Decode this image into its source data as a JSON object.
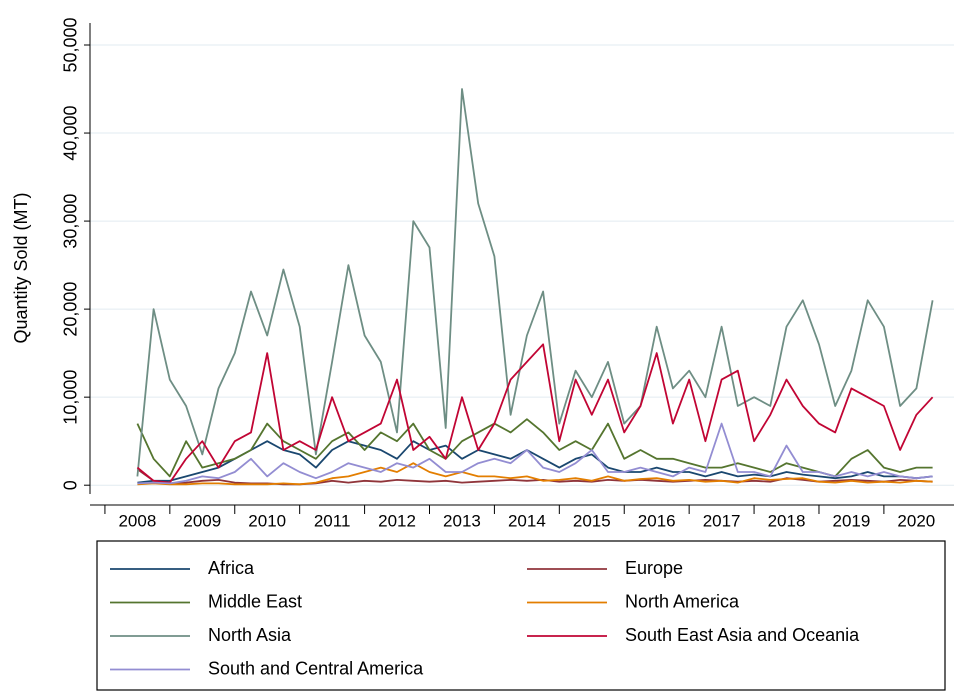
{
  "chart_data": {
    "type": "line",
    "y_label": "Quantity Sold (MT)",
    "x": [
      2008.5,
      2008.75,
      2009.0,
      2009.25,
      2009.5,
      2009.75,
      2010.0,
      2010.25,
      2010.5,
      2010.75,
      2011.0,
      2011.25,
      2011.5,
      2011.75,
      2012.0,
      2012.25,
      2012.5,
      2012.75,
      2013.0,
      2013.25,
      2013.5,
      2013.75,
      2014.0,
      2014.25,
      2014.5,
      2014.75,
      2015.0,
      2015.25,
      2015.5,
      2015.75,
      2016.0,
      2016.25,
      2016.5,
      2016.75,
      2017.0,
      2017.25,
      2017.5,
      2017.75,
      2018.0,
      2018.25,
      2018.5,
      2018.75,
      2019.0,
      2019.25,
      2019.5,
      2019.75,
      2020.0,
      2020.25,
      2020.5,
      2020.75
    ],
    "xlim": [
      2007.77,
      2021.08
    ],
    "xticks": [
      2008,
      2009,
      2010,
      2011,
      2012,
      2013,
      2014,
      2015,
      2016,
      2017,
      2018,
      2019,
      2020
    ],
    "xticklabels": [
      {
        "value": 2008.5,
        "label": "2008"
      },
      {
        "value": 2009.5,
        "label": "2009"
      },
      {
        "value": 2010.5,
        "label": "2010"
      },
      {
        "value": 2011.5,
        "label": "2011"
      },
      {
        "value": 2012.5,
        "label": "2012"
      },
      {
        "value": 2013.5,
        "label": "2013"
      },
      {
        "value": 2014.5,
        "label": "2014"
      },
      {
        "value": 2015.5,
        "label": "2015"
      },
      {
        "value": 2016.5,
        "label": "2016"
      },
      {
        "value": 2017.5,
        "label": "2017"
      },
      {
        "value": 2018.5,
        "label": "2018"
      },
      {
        "value": 2019.5,
        "label": "2019"
      },
      {
        "value": 2020.5,
        "label": "2020"
      }
    ],
    "ylim": [
      -1000,
      52500
    ],
    "yticks": [
      0,
      {
        "value": 10000,
        "label": "10,000"
      },
      {
        "value": 20000,
        "label": "20,000"
      },
      {
        "value": 30000,
        "label": "30,000"
      },
      {
        "value": 40000,
        "label": "40,000"
      },
      {
        "value": 50000,
        "label": "50,000"
      }
    ],
    "grid": true,
    "series": [
      {
        "name": "Africa",
        "color": "#1a476f",
        "values": [
          300,
          500,
          500,
          1000,
          1500,
          2000,
          3000,
          4000,
          5000,
          4000,
          3500,
          2000,
          4000,
          5000,
          4500,
          4000,
          3000,
          5000,
          4000,
          4500,
          3000,
          4000,
          3500,
          3000,
          4000,
          3000,
          2000,
          3000,
          3500,
          2000,
          1500,
          1500,
          2000,
          1500,
          1500,
          1000,
          1500,
          1000,
          1200,
          1000,
          1500,
          1200,
          1000,
          800,
          1000,
          1500,
          1000,
          1000,
          800,
          1000
        ]
      },
      {
        "name": "Europe",
        "color": "#90353b",
        "values": [
          1800,
          500,
          200,
          300,
          500,
          600,
          300,
          200,
          200,
          100,
          100,
          200,
          500,
          300,
          500,
          400,
          600,
          500,
          400,
          500,
          300,
          400,
          500,
          600,
          500,
          600,
          400,
          500,
          400,
          600,
          500,
          600,
          500,
          400,
          500,
          600,
          500,
          400,
          500,
          400,
          800,
          600,
          400,
          500,
          600,
          500,
          400,
          600,
          500,
          400
        ]
      },
      {
        "name": "Middle East",
        "color": "#55752f",
        "values": [
          7000,
          3000,
          1000,
          5000,
          2000,
          2500,
          3000,
          4000,
          7000,
          5000,
          4000,
          3000,
          5000,
          6000,
          4000,
          6000,
          5000,
          7000,
          4000,
          3000,
          5000,
          6000,
          7000,
          6000,
          7500,
          6000,
          4000,
          5000,
          4000,
          7000,
          3000,
          4000,
          3000,
          3000,
          2500,
          2000,
          2000,
          2500,
          2000,
          1500,
          2500,
          2000,
          1500,
          1000,
          3000,
          4000,
          2000,
          1500,
          2000,
          2000
        ]
      },
      {
        "name": "North America",
        "color": "#e37e00",
        "values": [
          100,
          200,
          100,
          100,
          200,
          200,
          100,
          100,
          100,
          200,
          100,
          300,
          800,
          1000,
          1500,
          2000,
          1500,
          2500,
          1500,
          1000,
          1500,
          1000,
          1000,
          800,
          1000,
          500,
          600,
          800,
          500,
          1000,
          500,
          700,
          800,
          500,
          600,
          400,
          500,
          300,
          800,
          600,
          700,
          800,
          400,
          300,
          500,
          300,
          400,
          300,
          500,
          400
        ]
      },
      {
        "name": "North Asia",
        "color": "#6e8e84",
        "values": [
          1000,
          20000,
          12000,
          9000,
          3500,
          11000,
          15000,
          22000,
          17000,
          24500,
          18000,
          3500,
          14000,
          25000,
          17000,
          14000,
          6000,
          30000,
          27000,
          6500,
          45000,
          32000,
          26000,
          8000,
          17000,
          22000,
          7000,
          13000,
          10000,
          14000,
          7000,
          9000,
          18000,
          11000,
          13000,
          10000,
          18000,
          9000,
          10000,
          9000,
          18000,
          21000,
          16000,
          9000,
          13000,
          21000,
          18000,
          9000,
          11000,
          21000
        ]
      },
      {
        "name": "South East Asia and Oceania",
        "color": "#c10534",
        "values": [
          2000,
          500,
          300,
          3000,
          5000,
          2000,
          5000,
          6000,
          15000,
          4000,
          5000,
          4000,
          10000,
          5000,
          6000,
          7000,
          12000,
          4000,
          5500,
          3000,
          10000,
          4000,
          7000,
          12000,
          14000,
          16000,
          5000,
          12000,
          8000,
          12000,
          6000,
          9000,
          15000,
          7000,
          12000,
          5000,
          12000,
          13000,
          5000,
          8000,
          12000,
          9000,
          7000,
          6000,
          11000,
          10000,
          9000,
          4000,
          8000,
          10000
        ]
      },
      {
        "name": "South and Central America",
        "color": "#938dd2",
        "values": [
          200,
          300,
          200,
          500,
          1000,
          800,
          1500,
          3000,
          1000,
          2500,
          1500,
          800,
          1500,
          2500,
          2000,
          1500,
          2500,
          2000,
          3000,
          1500,
          1500,
          2500,
          3000,
          2500,
          4000,
          2000,
          1500,
          2500,
          4000,
          1500,
          1500,
          2000,
          1500,
          1000,
          2000,
          1500,
          7000,
          1500,
          1500,
          1000,
          4500,
          1500,
          1500,
          1000,
          1500,
          1000,
          1500,
          1000,
          800,
          1000
        ]
      }
    ]
  }
}
